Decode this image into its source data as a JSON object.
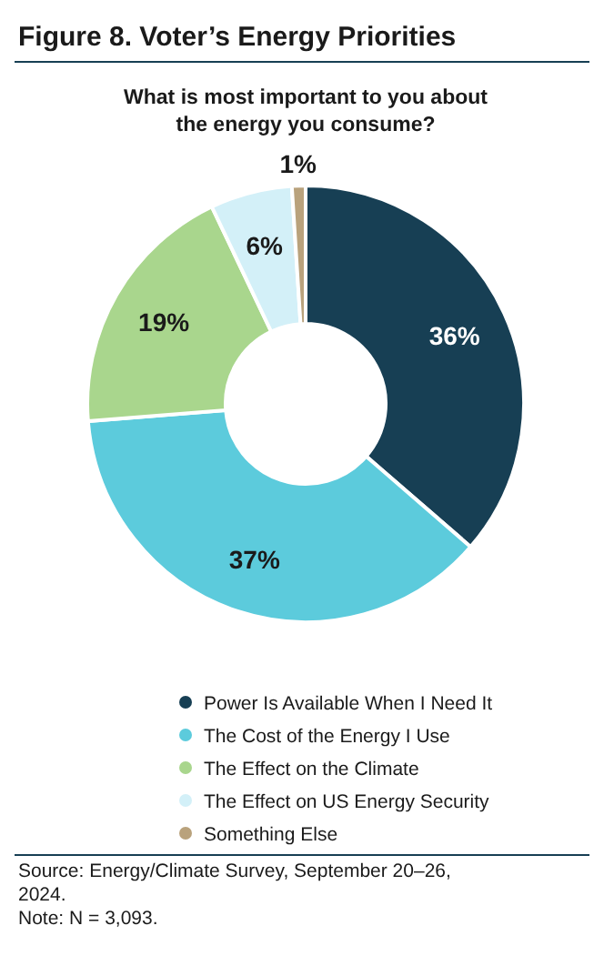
{
  "chart_data": {
    "type": "donut",
    "title": "Figure 8. Voter’s Energy Priorities",
    "subtitle": "What is most important to you about the energy you consume?",
    "categories": [
      "Power Is Available When I Need It",
      "The Cost of the Energy I Use",
      "The Effect on the Climate",
      "The Effect on US Energy Security",
      "Something Else"
    ],
    "values": [
      36,
      37,
      19,
      6,
      1
    ],
    "colors": [
      "#173f54",
      "#5ccbdc",
      "#a9d68d",
      "#d3f0f8",
      "#b9a27c"
    ],
    "value_labels": [
      "36%",
      "37%",
      "19%",
      "6%",
      "1%"
    ],
    "legend": "bottom",
    "annotations": [
      "Source: Energy/Climate Survey, September 20–26, 2024.",
      "Note: N = 3,093."
    ]
  }
}
